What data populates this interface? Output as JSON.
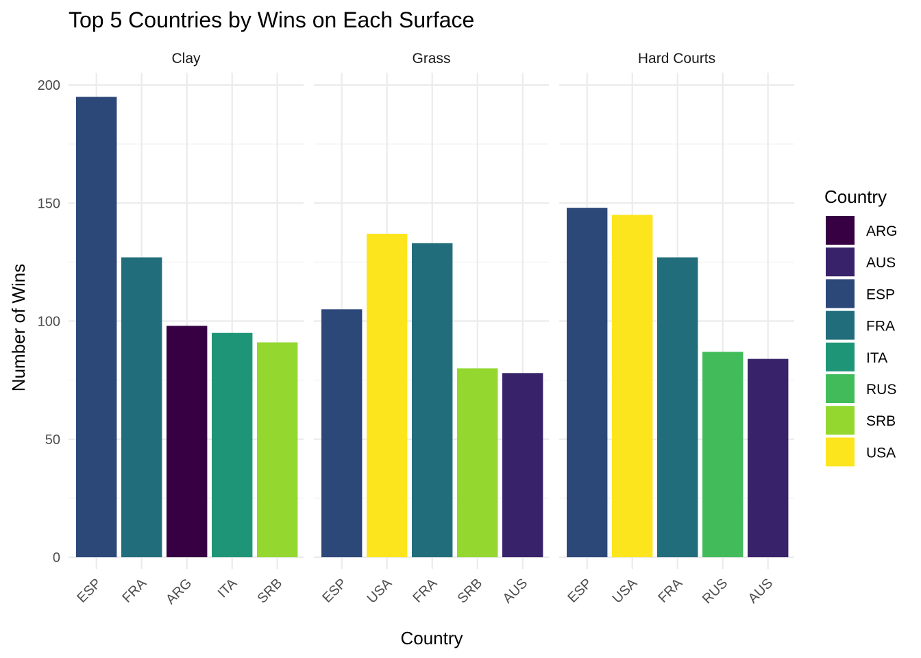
{
  "chart_data": {
    "type": "bar",
    "title": "Top 5 Countries by Wins on Each Surface",
    "xlabel": "Country",
    "ylabel": "Number of Wins",
    "ylim": [
      0,
      200
    ],
    "y_ticks": [
      "0",
      "50",
      "100",
      "150",
      "200"
    ],
    "panels": [
      {
        "name": "Clay",
        "categories": [
          "ESP",
          "FRA",
          "ARG",
          "ITA",
          "SRB"
        ],
        "values": [
          195,
          127,
          98,
          95,
          91
        ]
      },
      {
        "name": "Grass",
        "categories": [
          "ESP",
          "USA",
          "FRA",
          "SRB",
          "AUS"
        ],
        "values": [
          105,
          137,
          133,
          80,
          78
        ]
      },
      {
        "name": "Hard Courts",
        "categories": [
          "ESP",
          "USA",
          "FRA",
          "RUS",
          "AUS"
        ],
        "values": [
          148,
          145,
          127,
          87,
          84
        ]
      }
    ],
    "legend": {
      "title": "Country",
      "position": "right",
      "entries": [
        {
          "label": "ARG",
          "color": "#360043"
        },
        {
          "label": "AUS",
          "color": "#38226A"
        },
        {
          "label": "ESP",
          "color": "#2C4879"
        },
        {
          "label": "FRA",
          "color": "#216D7B"
        },
        {
          "label": "ITA",
          "color": "#1F9577"
        },
        {
          "label": "RUS",
          "color": "#42BB5B"
        },
        {
          "label": "SRB",
          "color": "#93D72F"
        },
        {
          "label": "USA",
          "color": "#FDE51E"
        }
      ]
    }
  }
}
